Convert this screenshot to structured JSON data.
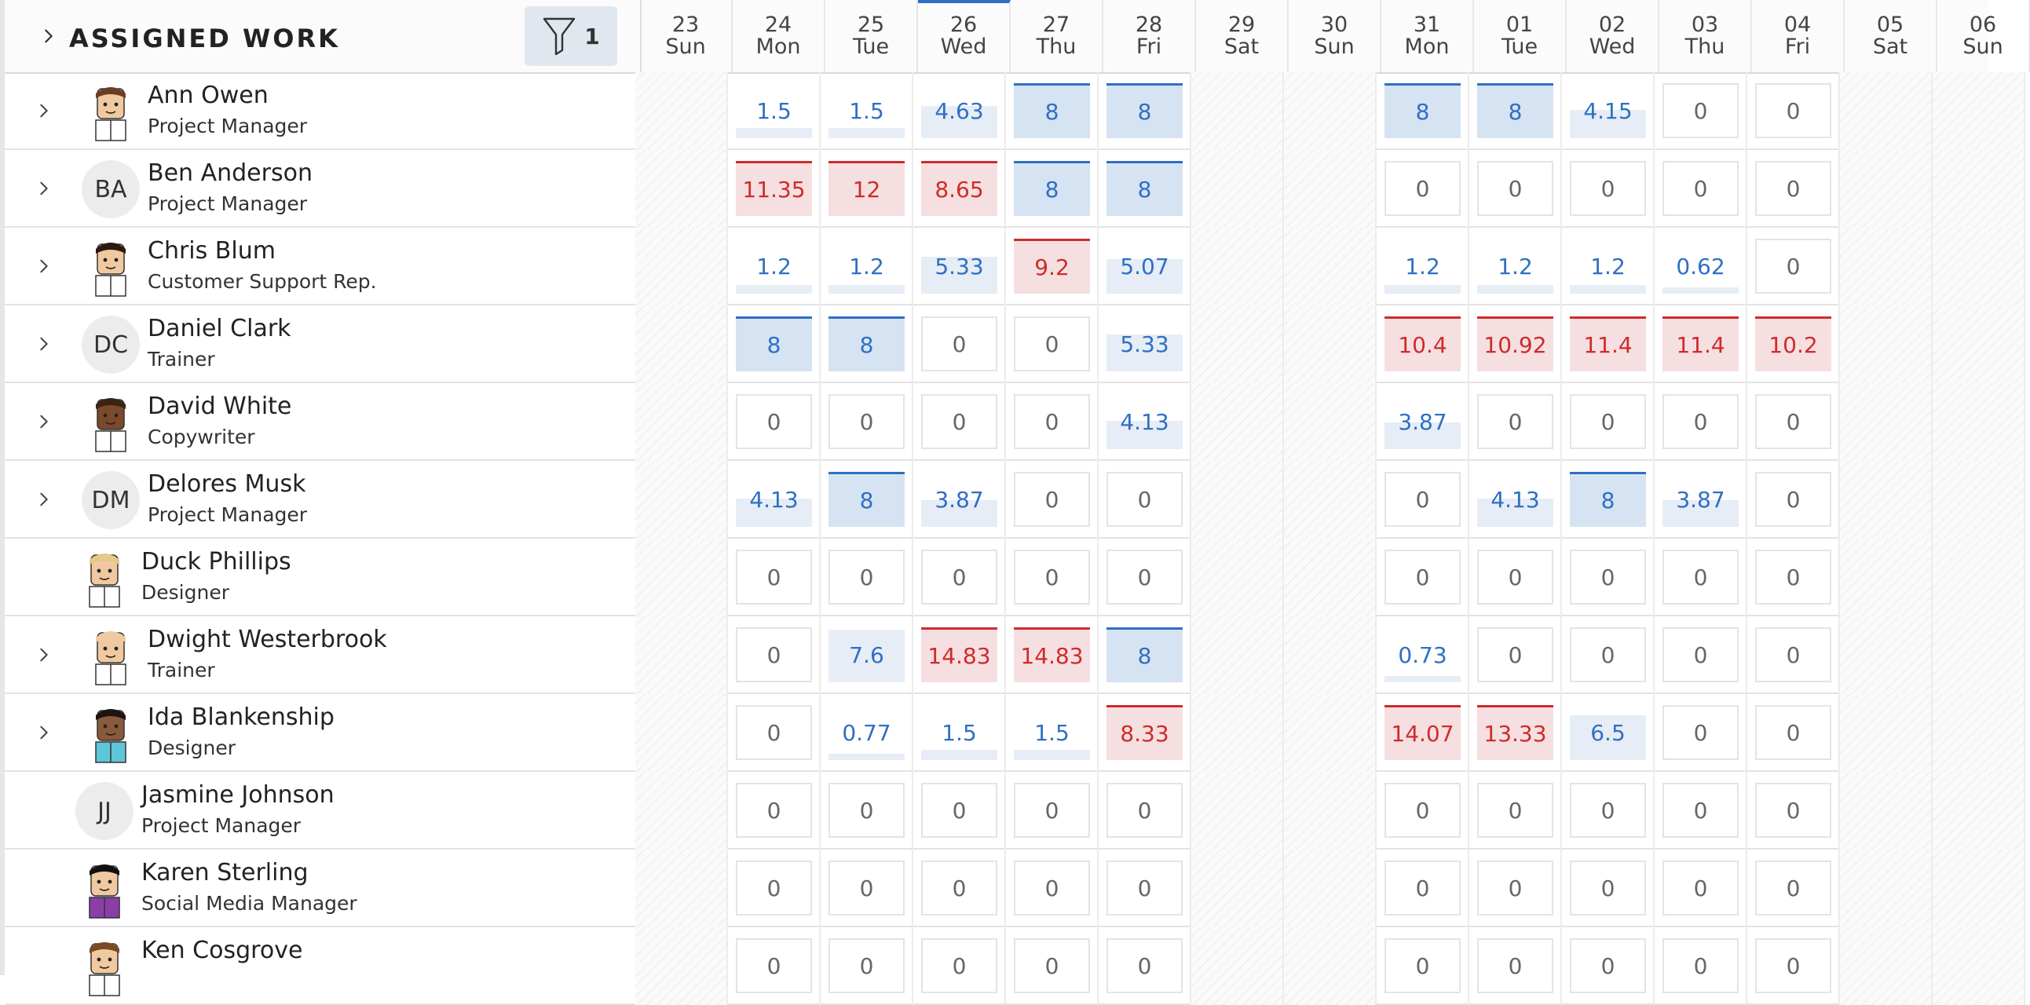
{
  "header": {
    "title": "ASSIGNED WORK",
    "filter_count": "1"
  },
  "days": [
    {
      "num": "23",
      "dow": "Sun",
      "weekend": true
    },
    {
      "num": "24",
      "dow": "Mon",
      "weekend": false
    },
    {
      "num": "25",
      "dow": "Tue",
      "weekend": false
    },
    {
      "num": "26",
      "dow": "Wed",
      "weekend": false,
      "today": true
    },
    {
      "num": "27",
      "dow": "Thu",
      "weekend": false
    },
    {
      "num": "28",
      "dow": "Fri",
      "weekend": false
    },
    {
      "num": "29",
      "dow": "Sat",
      "weekend": true
    },
    {
      "num": "30",
      "dow": "Sun",
      "weekend": true
    },
    {
      "num": "31",
      "dow": "Mon",
      "weekend": false
    },
    {
      "num": "01",
      "dow": "Tue",
      "weekend": false
    },
    {
      "num": "02",
      "dow": "Wed",
      "weekend": false
    },
    {
      "num": "03",
      "dow": "Thu",
      "weekend": false
    },
    {
      "num": "04",
      "dow": "Fri",
      "weekend": false
    },
    {
      "num": "05",
      "dow": "Sat",
      "weekend": true
    },
    {
      "num": "06",
      "dow": "Sun",
      "weekend": true
    }
  ],
  "people": [
    {
      "name": "Ann Owen",
      "role": "Project Manager",
      "avatar": "cartoon-woman-brown-hair",
      "expandable": true,
      "cells": [
        {
          "v": "1.5",
          "s": "partial",
          "f": 0.19
        },
        {
          "v": "1.5",
          "s": "partial",
          "f": 0.19
        },
        {
          "v": "4.63",
          "s": "partial",
          "f": 0.58
        },
        {
          "v": "8",
          "s": "full"
        },
        {
          "v": "8",
          "s": "full"
        },
        {
          "v": "8",
          "s": "full"
        },
        {
          "v": "8",
          "s": "full"
        },
        {
          "v": "4.15",
          "s": "partial",
          "f": 0.52
        },
        {
          "v": "0",
          "s": "zero"
        },
        {
          "v": "0",
          "s": "zero"
        }
      ]
    },
    {
      "name": "Ben Anderson",
      "role": "Project Manager",
      "initials": "BA",
      "expandable": true,
      "cells": [
        {
          "v": "11.35",
          "s": "over"
        },
        {
          "v": "12",
          "s": "over"
        },
        {
          "v": "8.65",
          "s": "over"
        },
        {
          "v": "8",
          "s": "full"
        },
        {
          "v": "8",
          "s": "full"
        },
        {
          "v": "0",
          "s": "zero"
        },
        {
          "v": "0",
          "s": "zero"
        },
        {
          "v": "0",
          "s": "zero"
        },
        {
          "v": "0",
          "s": "zero"
        },
        {
          "v": "0",
          "s": "zero"
        }
      ]
    },
    {
      "name": "Chris Blum",
      "role": "Customer Support Rep.",
      "avatar": "cartoon-man-dark-hair",
      "expandable": true,
      "cells": [
        {
          "v": "1.2",
          "s": "partial",
          "f": 0.15
        },
        {
          "v": "1.2",
          "s": "partial",
          "f": 0.15
        },
        {
          "v": "5.33",
          "s": "partial",
          "f": 0.67
        },
        {
          "v": "9.2",
          "s": "over"
        },
        {
          "v": "5.07",
          "s": "partial",
          "f": 0.63
        },
        {
          "v": "1.2",
          "s": "partial",
          "f": 0.15
        },
        {
          "v": "1.2",
          "s": "partial",
          "f": 0.15
        },
        {
          "v": "1.2",
          "s": "partial",
          "f": 0.15
        },
        {
          "v": "0.62",
          "s": "partial",
          "f": 0.08
        },
        {
          "v": "0",
          "s": "zero"
        }
      ]
    },
    {
      "name": "Daniel Clark",
      "role": "Trainer",
      "initials": "DC",
      "expandable": true,
      "cells": [
        {
          "v": "8",
          "s": "full"
        },
        {
          "v": "8",
          "s": "full"
        },
        {
          "v": "0",
          "s": "zero"
        },
        {
          "v": "0",
          "s": "zero"
        },
        {
          "v": "5.33",
          "s": "partial",
          "f": 0.67
        },
        {
          "v": "10.4",
          "s": "over"
        },
        {
          "v": "10.92",
          "s": "over"
        },
        {
          "v": "11.4",
          "s": "over"
        },
        {
          "v": "11.4",
          "s": "over"
        },
        {
          "v": "10.2",
          "s": "over"
        }
      ]
    },
    {
      "name": "David White",
      "role": "Copywriter",
      "avatar": "cartoon-man-dark-skin",
      "expandable": true,
      "cells": [
        {
          "v": "0",
          "s": "zero"
        },
        {
          "v": "0",
          "s": "zero"
        },
        {
          "v": "0",
          "s": "zero"
        },
        {
          "v": "0",
          "s": "zero"
        },
        {
          "v": "4.13",
          "s": "partial",
          "f": 0.52
        },
        {
          "v": "3.87",
          "s": "partial",
          "f": 0.48
        },
        {
          "v": "0",
          "s": "zero"
        },
        {
          "v": "0",
          "s": "zero"
        },
        {
          "v": "0",
          "s": "zero"
        },
        {
          "v": "0",
          "s": "zero"
        }
      ]
    },
    {
      "name": "Delores Musk",
      "role": "Project Manager",
      "initials": "DM",
      "expandable": true,
      "cells": [
        {
          "v": "4.13",
          "s": "partial",
          "f": 0.52
        },
        {
          "v": "8",
          "s": "full"
        },
        {
          "v": "3.87",
          "s": "partial",
          "f": 0.48
        },
        {
          "v": "0",
          "s": "zero"
        },
        {
          "v": "0",
          "s": "zero"
        },
        {
          "v": "0",
          "s": "zero"
        },
        {
          "v": "4.13",
          "s": "partial",
          "f": 0.52
        },
        {
          "v": "8",
          "s": "full"
        },
        {
          "v": "3.87",
          "s": "partial",
          "f": 0.48
        },
        {
          "v": "0",
          "s": "zero"
        }
      ]
    },
    {
      "name": "Duck Phillips",
      "role": "Designer",
      "avatar": "cartoon-man-blond",
      "expandable": false,
      "cells": [
        {
          "v": "0",
          "s": "zero"
        },
        {
          "v": "0",
          "s": "zero"
        },
        {
          "v": "0",
          "s": "zero"
        },
        {
          "v": "0",
          "s": "zero"
        },
        {
          "v": "0",
          "s": "zero"
        },
        {
          "v": "0",
          "s": "zero"
        },
        {
          "v": "0",
          "s": "zero"
        },
        {
          "v": "0",
          "s": "zero"
        },
        {
          "v": "0",
          "s": "zero"
        },
        {
          "v": "0",
          "s": "zero"
        }
      ]
    },
    {
      "name": "Dwight Westerbrook",
      "role": "Trainer",
      "avatar": "cartoon-man-bald-beard",
      "expandable": true,
      "cells": [
        {
          "v": "0",
          "s": "zero"
        },
        {
          "v": "7.6",
          "s": "partial",
          "f": 0.95
        },
        {
          "v": "14.83",
          "s": "over"
        },
        {
          "v": "14.83",
          "s": "over"
        },
        {
          "v": "8",
          "s": "full"
        },
        {
          "v": "0.73",
          "s": "partial",
          "f": 0.09
        },
        {
          "v": "0",
          "s": "zero"
        },
        {
          "v": "0",
          "s": "zero"
        },
        {
          "v": "0",
          "s": "zero"
        },
        {
          "v": "0",
          "s": "zero"
        }
      ]
    },
    {
      "name": "Ida Blankenship",
      "role": "Designer",
      "avatar": "cartoon-woman-dark-hair",
      "expandable": true,
      "cells": [
        {
          "v": "0",
          "s": "zero"
        },
        {
          "v": "0.77",
          "s": "partial",
          "f": 0.1
        },
        {
          "v": "1.5",
          "s": "partial",
          "f": 0.19
        },
        {
          "v": "1.5",
          "s": "partial",
          "f": 0.19
        },
        {
          "v": "8.33",
          "s": "over"
        },
        {
          "v": "14.07",
          "s": "over"
        },
        {
          "v": "13.33",
          "s": "over"
        },
        {
          "v": "6.5",
          "s": "partial",
          "f": 0.81
        },
        {
          "v": "0",
          "s": "zero"
        },
        {
          "v": "0",
          "s": "zero"
        }
      ]
    },
    {
      "name": "Jasmine Johnson",
      "role": "Project Manager",
      "initials": "JJ",
      "expandable": false,
      "cells": [
        {
          "v": "0",
          "s": "zero"
        },
        {
          "v": "0",
          "s": "zero"
        },
        {
          "v": "0",
          "s": "zero"
        },
        {
          "v": "0",
          "s": "zero"
        },
        {
          "v": "0",
          "s": "zero"
        },
        {
          "v": "0",
          "s": "zero"
        },
        {
          "v": "0",
          "s": "zero"
        },
        {
          "v": "0",
          "s": "zero"
        },
        {
          "v": "0",
          "s": "zero"
        },
        {
          "v": "0",
          "s": "zero"
        }
      ]
    },
    {
      "name": "Karen Sterling",
      "role": "Social Media Manager",
      "avatar": "cartoon-woman-black-hair",
      "expandable": false,
      "cells": [
        {
          "v": "0",
          "s": "zero"
        },
        {
          "v": "0",
          "s": "zero"
        },
        {
          "v": "0",
          "s": "zero"
        },
        {
          "v": "0",
          "s": "zero"
        },
        {
          "v": "0",
          "s": "zero"
        },
        {
          "v": "0",
          "s": "zero"
        },
        {
          "v": "0",
          "s": "zero"
        },
        {
          "v": "0",
          "s": "zero"
        },
        {
          "v": "0",
          "s": "zero"
        },
        {
          "v": "0",
          "s": "zero"
        }
      ]
    },
    {
      "name": "Ken Cosgrove",
      "role": "",
      "avatar": "cartoon-man-mustache",
      "expandable": false,
      "cells": [
        {
          "v": "0",
          "s": "zero"
        },
        {
          "v": "0",
          "s": "zero"
        },
        {
          "v": "0",
          "s": "zero"
        },
        {
          "v": "0",
          "s": "zero"
        },
        {
          "v": "0",
          "s": "zero"
        },
        {
          "v": "0",
          "s": "zero"
        },
        {
          "v": "0",
          "s": "zero"
        },
        {
          "v": "0",
          "s": "zero"
        },
        {
          "v": "0",
          "s": "zero"
        },
        {
          "v": "0",
          "s": "zero"
        }
      ]
    }
  ],
  "colors": {
    "accent": "#2f6fc4",
    "over": "#cf2b2b",
    "full_bg": "#d6e3f2",
    "over_bg": "#f6dfe0"
  }
}
